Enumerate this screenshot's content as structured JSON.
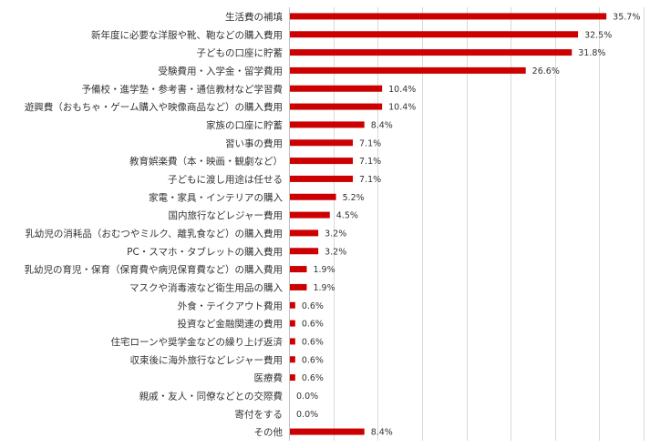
{
  "chart_data": {
    "type": "bar",
    "orientation": "horizontal",
    "title": "",
    "xlabel": "",
    "ylabel": "",
    "value_suffix": "%",
    "xlim": [
      0,
      40
    ],
    "grid_step": 5,
    "grid": true,
    "legend": "none",
    "bar_color": "#cc0000",
    "categories": [
      "生活費の補填",
      "新年度に必要な洋服や靴、鞄などの購入費用",
      "子どもの口座に貯蓄",
      "受験費用・入学金・留学費用",
      "予備校・進学塾・参考書・通信教材など学習費",
      "遊興費（おもちゃ・ゲーム購入や映像商品など）の購入費用",
      "家族の口座に貯蓄",
      "習い事の費用",
      "教育娯楽費（本・映画・観劇など）",
      "子どもに渡し用途は任せる",
      "家電・家具・インテリアの購入",
      "国内旅行などレジャー費用",
      "乳幼児の消耗品（おむつやミルク、離乳食など）の購入費用",
      "PC・スマホ・タブレットの購入費用",
      "乳幼児の育児・保育（保育費や病児保育費など）の購入費用",
      "マスクや消毒液など衛生用品の購入",
      "外食・テイクアウト費用",
      "投資など金融関連の費用",
      "住宅ローンや奨学金などの繰り上げ返済",
      "収束後に海外旅行などレジャー費用",
      "医療費",
      "親戚・友人・同僚などとの交際費",
      "寄付をする",
      "その他"
    ],
    "values": [
      35.7,
      32.5,
      31.8,
      26.6,
      10.4,
      10.4,
      8.4,
      7.1,
      7.1,
      7.1,
      5.2,
      4.5,
      3.2,
      3.2,
      1.9,
      1.9,
      0.6,
      0.6,
      0.6,
      0.6,
      0.6,
      0.0,
      0.0,
      8.4
    ]
  }
}
